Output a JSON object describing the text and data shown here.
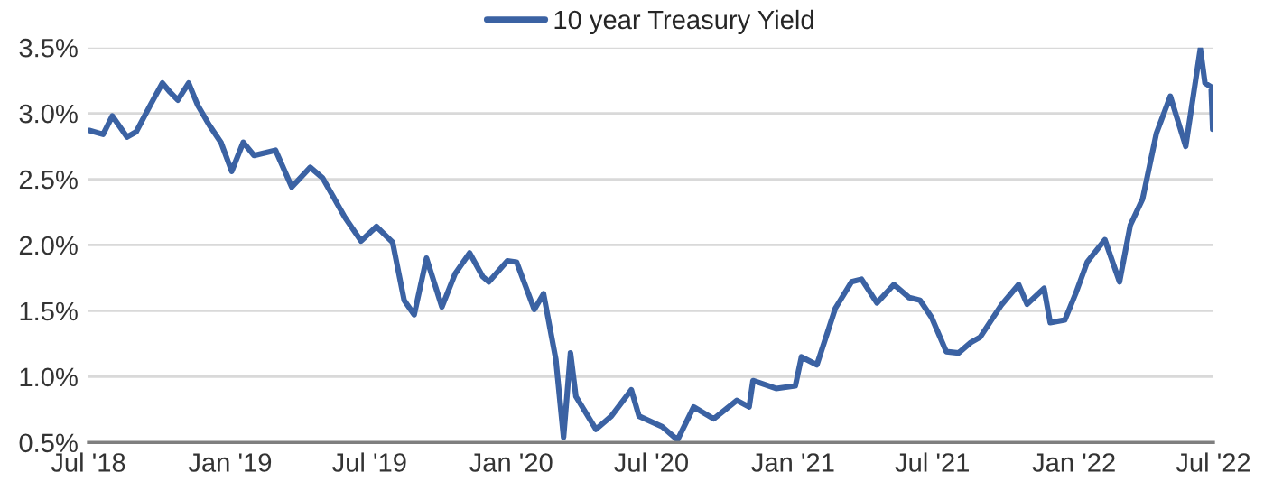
{
  "chart_data": {
    "type": "line",
    "x": [
      "2018-07-02",
      "2018-07-20",
      "2018-08-01",
      "2018-08-20",
      "2018-09-01",
      "2018-09-20",
      "2018-10-05",
      "2018-10-15",
      "2018-10-25",
      "2018-11-08",
      "2018-11-20",
      "2018-12-05",
      "2018-12-20",
      "2019-01-03",
      "2019-01-18",
      "2019-02-01",
      "2019-03-01",
      "2019-03-22",
      "2019-04-15",
      "2019-05-01",
      "2019-05-30",
      "2019-06-20",
      "2019-07-10",
      "2019-07-31",
      "2019-08-15",
      "2019-08-28",
      "2019-09-13",
      "2019-10-03",
      "2019-10-20",
      "2019-11-08",
      "2019-11-25",
      "2019-12-03",
      "2019-12-27",
      "2020-01-08",
      "2020-01-31",
      "2020-02-12",
      "2020-02-28",
      "2020-03-09",
      "2020-03-18",
      "2020-03-25",
      "2020-04-20",
      "2020-05-10",
      "2020-06-05",
      "2020-06-15",
      "2020-07-15",
      "2020-08-04",
      "2020-08-25",
      "2020-09-20",
      "2020-10-20",
      "2020-11-05",
      "2020-11-10",
      "2020-12-10",
      "2021-01-04",
      "2021-01-12",
      "2021-02-01",
      "2021-02-25",
      "2021-03-18",
      "2021-03-31",
      "2021-04-20",
      "2021-05-12",
      "2021-06-01",
      "2021-06-15",
      "2021-06-30",
      "2021-07-19",
      "2021-08-04",
      "2021-08-20",
      "2021-09-01",
      "2021-09-28",
      "2021-10-21",
      "2021-11-01",
      "2021-11-23",
      "2021-12-01",
      "2021-12-20",
      "2022-01-03",
      "2022-01-18",
      "2022-02-10",
      "2022-03-01",
      "2022-03-15",
      "2022-03-31",
      "2022-04-18",
      "2022-05-06",
      "2022-05-26",
      "2022-06-14",
      "2022-06-20",
      "2022-06-28",
      "2022-06-30"
    ],
    "series": [
      {
        "name": "10 year Treasury Yield",
        "color": "#3b62a3",
        "values": [
          2.87,
          2.84,
          2.98,
          2.82,
          2.86,
          3.07,
          3.23,
          3.16,
          3.1,
          3.23,
          3.06,
          2.91,
          2.78,
          2.56,
          2.78,
          2.68,
          2.72,
          2.44,
          2.59,
          2.51,
          2.21,
          2.03,
          2.14,
          2.02,
          1.58,
          1.47,
          1.9,
          1.53,
          1.78,
          1.94,
          1.76,
          1.72,
          1.88,
          1.87,
          1.51,
          1.63,
          1.13,
          0.54,
          1.18,
          0.85,
          0.6,
          0.7,
          0.9,
          0.7,
          0.62,
          0.52,
          0.77,
          0.68,
          0.82,
          0.77,
          0.97,
          0.91,
          0.93,
          1.15,
          1.09,
          1.52,
          1.72,
          1.74,
          1.56,
          1.7,
          1.6,
          1.58,
          1.45,
          1.19,
          1.18,
          1.26,
          1.3,
          1.54,
          1.7,
          1.55,
          1.67,
          1.41,
          1.43,
          1.63,
          1.87,
          2.04,
          1.72,
          2.15,
          2.35,
          2.85,
          3.13,
          2.75,
          3.49,
          3.23,
          3.2,
          2.88
        ]
      }
    ],
    "xlim": [
      "2018-07-01",
      "2022-07-01"
    ],
    "xticks": [
      {
        "value": "2018-07-01",
        "label": "Jul '18"
      },
      {
        "value": "2019-01-01",
        "label": "Jan '19"
      },
      {
        "value": "2019-07-01",
        "label": "Jul '19"
      },
      {
        "value": "2020-01-01",
        "label": "Jan '20"
      },
      {
        "value": "2020-07-01",
        "label": "Jul '20"
      },
      {
        "value": "2021-01-01",
        "label": "Jan '21"
      },
      {
        "value": "2021-07-01",
        "label": "Jul '21"
      },
      {
        "value": "2022-01-01",
        "label": "Jan '22"
      },
      {
        "value": "2022-07-01",
        "label": "Jul '22"
      }
    ],
    "ylim": [
      0.5,
      3.5
    ],
    "yticks": [
      {
        "value": 0.5,
        "label": "0.5%"
      },
      {
        "value": 1.0,
        "label": "1.0%"
      },
      {
        "value": 1.5,
        "label": "1.5%"
      },
      {
        "value": 2.0,
        "label": "2.0%"
      },
      {
        "value": 2.5,
        "label": "2.5%"
      },
      {
        "value": 3.0,
        "label": "3.0%"
      },
      {
        "value": 3.5,
        "label": "3.5%"
      }
    ],
    "grid": "y",
    "legend": "top",
    "marker": "none",
    "line_style": "solid"
  }
}
